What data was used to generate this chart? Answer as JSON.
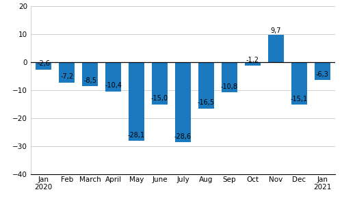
{
  "categories": [
    "Jan\n2020",
    "Feb",
    "March",
    "April",
    "May",
    "June",
    "July",
    "Aug",
    "Sep",
    "Oct",
    "Nov",
    "Dec",
    "Jan\n2021"
  ],
  "values": [
    -2.6,
    -7.2,
    -8.5,
    -10.4,
    -28.1,
    -15.0,
    -28.6,
    -16.5,
    -10.8,
    -1.2,
    9.7,
    -15.1,
    -6.3
  ],
  "labels": [
    "-2,6",
    "-7,2",
    "-8,5",
    "-10,4",
    "-28,1",
    "-15,0",
    "-28,6",
    "-16,5",
    "-10,8",
    "-1,2",
    "9,7",
    "-15,1",
    "-6,3"
  ],
  "bar_color": "#1b7abf",
  "ylim": [
    -40,
    20
  ],
  "yticks": [
    -40,
    -30,
    -20,
    -10,
    0,
    10,
    20
  ],
  "label_fontsize": 7.0,
  "tick_fontsize": 7.5,
  "background_color": "#ffffff",
  "grid_color": "#c8c8c8"
}
